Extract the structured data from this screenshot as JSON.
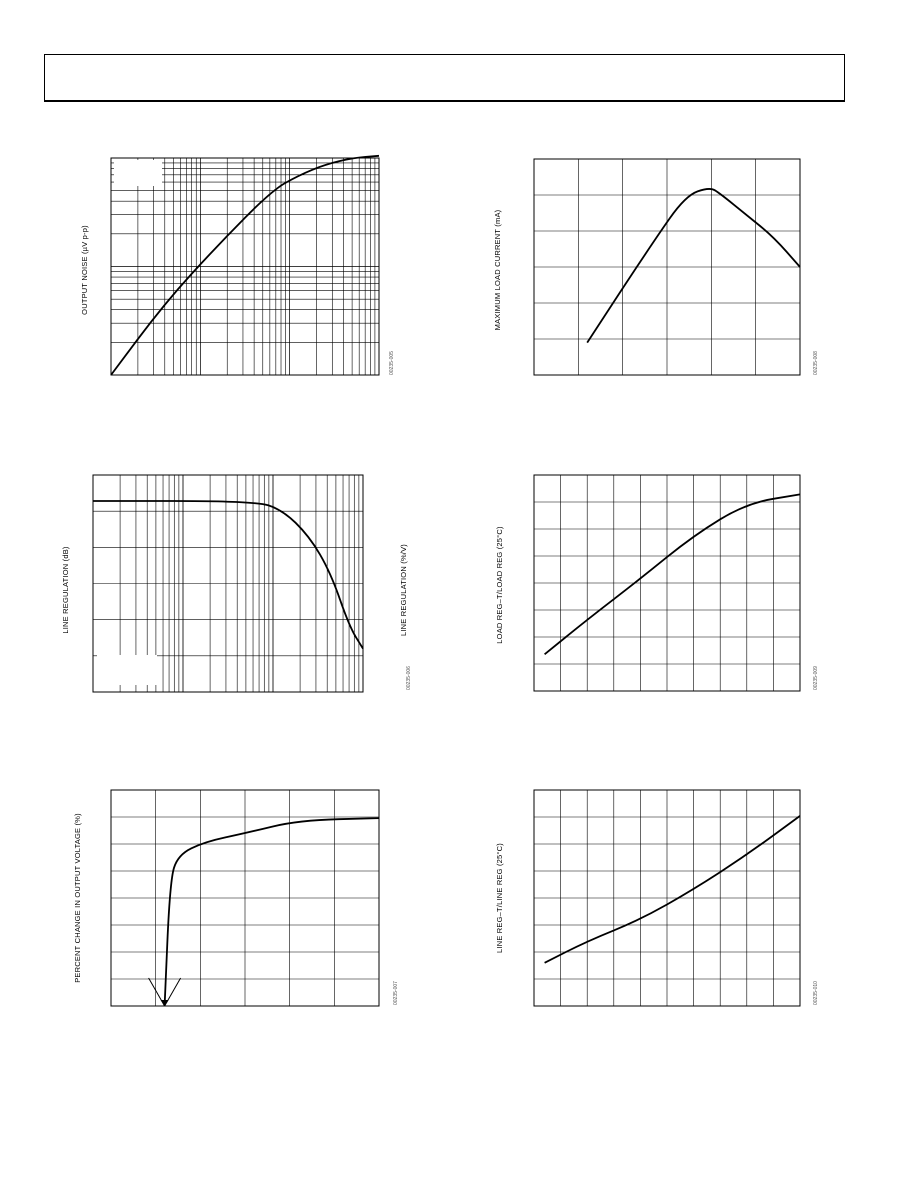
{
  "charts": [
    {
      "id": "c1",
      "ylabel": "OUTPUT NOISE (µV p-p)",
      "code": "00235-005"
    },
    {
      "id": "c2",
      "ylabel": "MAXIMUM LOAD CURRENT (mA)",
      "code": "00235-008"
    },
    {
      "id": "c3",
      "ylabel": "LINE REGULATION (dB)",
      "ylabel_right": "LINE REGULATION (%/V)",
      "code": "00235-006"
    },
    {
      "id": "c4",
      "ylabel": "LOAD REG–T/LOAD REG (25°C)",
      "code": "00235-009"
    },
    {
      "id": "c5",
      "ylabel": "PERCENT CHANGE IN OUTPUT VOLTAGE (%)",
      "code": "00235-007"
    },
    {
      "id": "c6",
      "ylabel": "LINE REG–T/LINE REG (25°C)",
      "code": "00235-010"
    }
  ],
  "chart_data": [
    {
      "type": "line",
      "grid": true,
      "xscale": "log",
      "yscale": "log",
      "x": [
        0,
        0.2,
        0.4,
        0.6,
        0.7,
        0.8,
        0.9,
        1.0
      ],
      "y": [
        0,
        0.33,
        0.6,
        0.85,
        0.92,
        0.97,
        1.0,
        1.01
      ]
    },
    {
      "type": "line",
      "grid": true,
      "x": [
        0.2,
        0.45,
        0.57,
        0.66,
        0.7,
        0.8,
        0.9,
        1.0
      ],
      "y": [
        0.15,
        0.62,
        0.83,
        0.87,
        0.84,
        0.74,
        0.64,
        0.5
      ]
    },
    {
      "type": "line",
      "grid": true,
      "xscale": "log",
      "x": [
        0,
        0.6,
        0.7,
        0.8,
        0.88,
        0.95,
        1.0
      ],
      "y": [
        0.88,
        0.88,
        0.84,
        0.72,
        0.55,
        0.3,
        0.2
      ]
    },
    {
      "type": "line",
      "grid": true,
      "x": [
        0.04,
        0.2,
        0.4,
        0.6,
        0.8,
        1.0
      ],
      "y": [
        0.17,
        0.33,
        0.52,
        0.72,
        0.87,
        0.91
      ]
    },
    {
      "type": "line",
      "grid": true,
      "x": [
        0.2,
        0.22,
        0.25,
        0.35,
        0.5,
        0.7,
        1.0
      ],
      "y": [
        0.0,
        0.58,
        0.7,
        0.76,
        0.8,
        0.86,
        0.87
      ]
    },
    {
      "type": "line",
      "grid": true,
      "x": [
        0.04,
        0.2,
        0.4,
        0.6,
        0.8,
        1.0
      ],
      "y": [
        0.2,
        0.3,
        0.4,
        0.54,
        0.7,
        0.88
      ]
    }
  ]
}
